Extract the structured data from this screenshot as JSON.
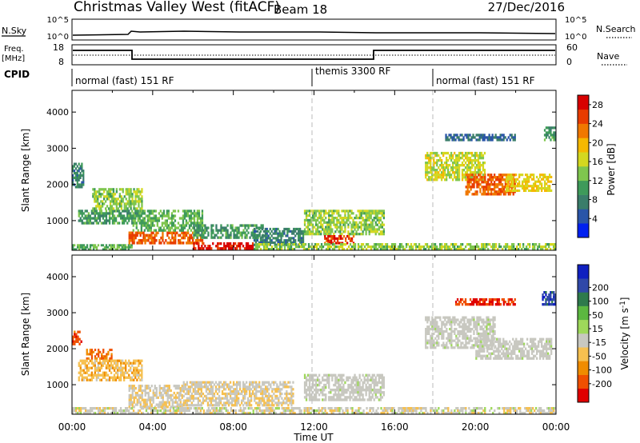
{
  "header": {
    "title": "Christmas Valley West (fitACF)",
    "beam": "Beam 18",
    "date": "27/Dec/2016"
  },
  "panels": {
    "nsky": {
      "left_label": "N.Sky",
      "right_label": "N.Search",
      "left_ticks": [
        "10^5",
        "10^0"
      ],
      "right_ticks": [
        "10^5",
        "10^0"
      ]
    },
    "freq": {
      "left_label_1": "Freq.",
      "left_label_2": "[MHz]",
      "right_label": "Nave",
      "left_ticks": [
        "18",
        "8"
      ],
      "right_ticks": [
        "60",
        "0"
      ]
    },
    "cpid": {
      "label": "CPID",
      "segments": [
        {
          "label": "normal (fast) 151 RF"
        },
        {
          "label": "themis 3300 RF"
        },
        {
          "label": "normal (fast) 151 RF"
        }
      ]
    }
  },
  "colors": {
    "power_scale": [
      "#0020f0",
      "#2a55a8",
      "#3a7d6a",
      "#3e9a5a",
      "#7fc64e",
      "#d4d820",
      "#f5b800",
      "#f07800",
      "#e83c00",
      "#d80000"
    ],
    "velocity_scale": [
      "#e00000",
      "#f05000",
      "#f08c00",
      "#f6c050",
      "#c8c8c0",
      "#9ed85a",
      "#5cb840",
      "#2e7a4c",
      "#3048a8",
      "#1020c0"
    ],
    "ground_gray": "#c8c8c0"
  },
  "chart_data": [
    {
      "type": "heatmap",
      "title": "Power",
      "ylabel": "Slant Range [km]",
      "ylim": [
        180,
        4600
      ],
      "yticks": [
        "1000",
        "2000",
        "3000",
        "4000"
      ],
      "x_ticks": [
        "00:00",
        "04:00",
        "08:00",
        "12:00",
        "16:00",
        "20:00",
        "00:00"
      ],
      "colorbar": {
        "label": "Power [dB]",
        "ticks": [
          "4",
          "8",
          "12",
          "16",
          "20",
          "24",
          "28"
        ],
        "range": [
          0,
          30
        ]
      },
      "regions": [
        {
          "t0": 0.0,
          "t1": 3.0,
          "r0": 180,
          "r1": 350,
          "value": 12
        },
        {
          "t0": 0.0,
          "t1": 0.6,
          "r0": 1900,
          "r1": 2600,
          "value": 8
        },
        {
          "t0": 0.3,
          "t1": 3.5,
          "r0": 900,
          "r1": 1300,
          "value": 10
        },
        {
          "t0": 1.0,
          "t1": 3.5,
          "r0": 1300,
          "r1": 1900,
          "value": 14
        },
        {
          "t0": 2.8,
          "t1": 6.5,
          "r0": 350,
          "r1": 700,
          "value": 24
        },
        {
          "t0": 3.0,
          "t1": 6.5,
          "r0": 700,
          "r1": 1300,
          "value": 12
        },
        {
          "t0": 6.0,
          "t1": 9.0,
          "r0": 200,
          "r1": 400,
          "value": 28
        },
        {
          "t0": 6.0,
          "t1": 9.5,
          "r0": 500,
          "r1": 900,
          "value": 10
        },
        {
          "t0": 9.0,
          "t1": 11.5,
          "r0": 300,
          "r1": 800,
          "value": 8
        },
        {
          "t0": 11.5,
          "t1": 15.5,
          "r0": 600,
          "r1": 1300,
          "value": 14
        },
        {
          "t0": 12.5,
          "t1": 14.0,
          "r0": 350,
          "r1": 600,
          "value": 26
        },
        {
          "t0": 9.0,
          "t1": 24.0,
          "r0": 180,
          "r1": 380,
          "value": 14
        },
        {
          "t0": 17.5,
          "t1": 20.5,
          "r0": 2100,
          "r1": 2900,
          "value": 16
        },
        {
          "t0": 19.5,
          "t1": 22.0,
          "r0": 1700,
          "r1": 2300,
          "value": 24
        },
        {
          "t0": 21.5,
          "t1": 23.8,
          "r0": 1800,
          "r1": 2300,
          "value": 18
        },
        {
          "t0": 18.5,
          "t1": 22.0,
          "r0": 3200,
          "r1": 3400,
          "value": 6
        },
        {
          "t0": 23.4,
          "t1": 24.0,
          "r0": 3200,
          "r1": 3600,
          "value": 10
        }
      ]
    },
    {
      "type": "heatmap",
      "title": "Velocity",
      "ylabel": "Slant Range [km]",
      "ylim": [
        180,
        4600
      ],
      "yticks": [
        "1000",
        "2000",
        "3000",
        "4000"
      ],
      "x_ticks": [
        "00:00",
        "04:00",
        "08:00",
        "12:00",
        "16:00",
        "20:00",
        "00:00"
      ],
      "xlabel": "Time UT",
      "colorbar": {
        "label": "Velocity [m s",
        "label_sup": "-1",
        "label_end": "]",
        "ticks": [
          "-200",
          "-100",
          "-50",
          "-15",
          "15",
          "50",
          "100",
          "200"
        ],
        "range": [
          -250,
          250
        ]
      },
      "regions": [
        {
          "t0": 0.0,
          "t1": 0.5,
          "r0": 2100,
          "r1": 2500,
          "value": -180
        },
        {
          "t0": 0.7,
          "t1": 2.0,
          "r0": 1700,
          "r1": 2000,
          "value": -150
        },
        {
          "t0": 0.3,
          "t1": 3.5,
          "r0": 1100,
          "r1": 1700,
          "value": -80
        },
        {
          "t0": 2.8,
          "t1": 5.5,
          "r0": 350,
          "r1": 1000,
          "value": -40
        },
        {
          "t0": 5.5,
          "t1": 11.0,
          "r0": 400,
          "r1": 1100,
          "value": -40
        },
        {
          "t0": 11.5,
          "t1": 15.5,
          "r0": 550,
          "r1": 1300,
          "value": 0
        },
        {
          "t0": 0.0,
          "t1": 24.0,
          "r0": 180,
          "r1": 380,
          "value": -30
        },
        {
          "t0": 17.5,
          "t1": 21.0,
          "r0": 2000,
          "r1": 2900,
          "value": 0
        },
        {
          "t0": 20.0,
          "t1": 23.8,
          "r0": 1700,
          "r1": 2300,
          "value": 0
        },
        {
          "t0": 19.0,
          "t1": 22.0,
          "r0": 3200,
          "r1": 3400,
          "value": -200
        },
        {
          "t0": 23.3,
          "t1": 24.0,
          "r0": 3200,
          "r1": 3600,
          "value": 180
        }
      ]
    }
  ]
}
